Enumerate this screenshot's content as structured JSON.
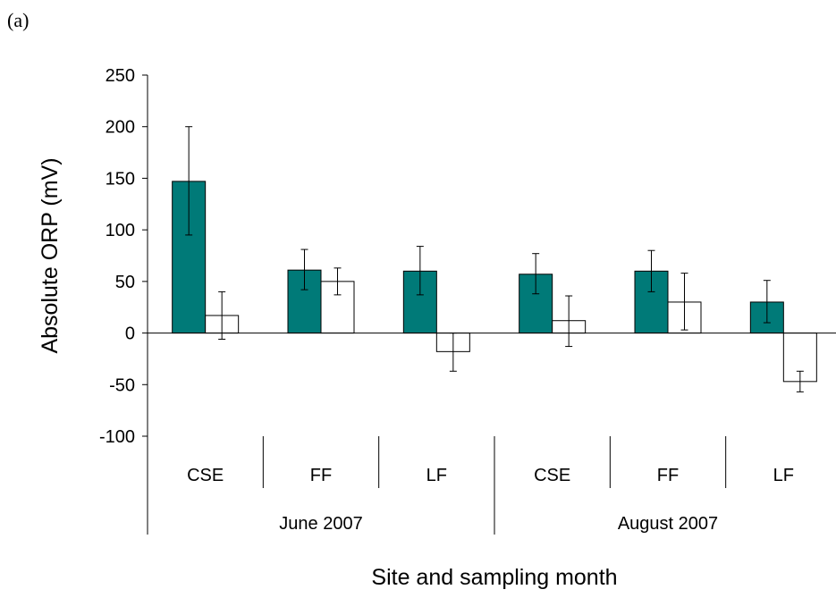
{
  "panel_label": "(a)",
  "chart_data": {
    "type": "bar",
    "xlabel": "Site and sampling month",
    "ylabel": "Absolute ORP (mV)",
    "ylim": [
      -100,
      250
    ],
    "yticks": [
      250,
      200,
      150,
      100,
      50,
      0,
      -50,
      -100
    ],
    "ytick_labels": [
      "250",
      "200",
      "150",
      "100",
      "50",
      "0",
      "-50",
      "-100"
    ],
    "grid": false,
    "legend": "none",
    "categories": [
      "CSE",
      "FF",
      "LF",
      "CSE",
      "FF",
      "LF"
    ],
    "groups": [
      {
        "label": "June 2007",
        "span": [
          0,
          2
        ]
      },
      {
        "label": "August 2007",
        "span": [
          3,
          5
        ]
      }
    ],
    "series": [
      {
        "color": "#007a78",
        "values": [
          147,
          61,
          60,
          57,
          60,
          30
        ],
        "err_low": [
          95,
          42,
          37,
          38,
          40,
          10
        ],
        "err_high": [
          200,
          81,
          84,
          77,
          80,
          51
        ]
      },
      {
        "color": "#ffffff",
        "values": [
          17,
          50,
          -18,
          12,
          30,
          -47
        ],
        "err_low": [
          -6,
          37,
          -37,
          -13,
          3,
          -57
        ],
        "err_high": [
          40,
          63,
          0,
          36,
          58,
          -37
        ]
      }
    ]
  }
}
